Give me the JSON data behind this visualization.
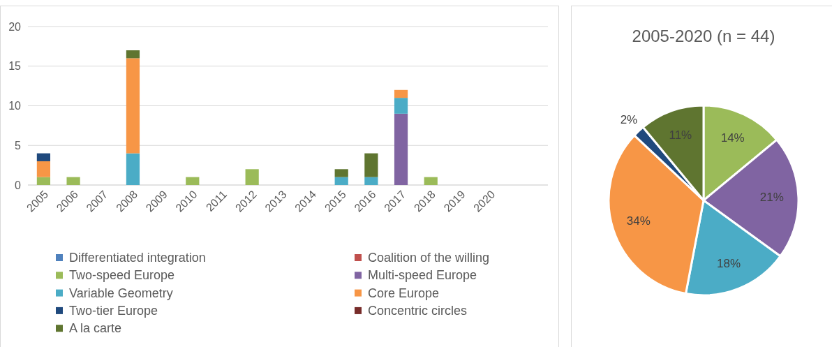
{
  "chart_data": [
    {
      "type": "bar",
      "stacked": true,
      "categories": [
        "2005",
        "2006",
        "2007",
        "2008",
        "2009",
        "2010",
        "2011",
        "2012",
        "2013",
        "2014",
        "2015",
        "2016",
        "2017",
        "2018",
        "2019",
        "2020"
      ],
      "series": [
        {
          "name": "Differentiated integration",
          "color": "#4f81bd",
          "values": [
            0,
            0,
            0,
            0,
            0,
            0,
            0,
            0,
            0,
            0,
            0,
            0,
            0,
            0,
            0,
            0
          ]
        },
        {
          "name": "Coalition of the willing",
          "color": "#c0504d",
          "values": [
            0,
            0,
            0,
            0,
            0,
            0,
            0,
            0,
            0,
            0,
            0,
            0,
            0,
            0,
            0,
            0
          ]
        },
        {
          "name": "Two-speed Europe",
          "color": "#9bbb59",
          "values": [
            1,
            1,
            0,
            0,
            0,
            1,
            0,
            2,
            0,
            0,
            0,
            0,
            0,
            1,
            0,
            0
          ]
        },
        {
          "name": "Multi-speed Europe",
          "color": "#8064a2",
          "values": [
            0,
            0,
            0,
            0,
            0,
            0,
            0,
            0,
            0,
            0,
            0,
            0,
            9,
            0,
            0,
            0
          ]
        },
        {
          "name": "Variable Geometry",
          "color": "#4bacc6",
          "values": [
            0,
            0,
            0,
            4,
            0,
            0,
            0,
            0,
            0,
            0,
            1,
            1,
            2,
            0,
            0,
            0
          ]
        },
        {
          "name": "Core Europe",
          "color": "#f79646",
          "values": [
            2,
            0,
            0,
            12,
            0,
            0,
            0,
            0,
            0,
            0,
            0,
            0,
            1,
            0,
            0,
            0
          ]
        },
        {
          "name": "Two-tier Europe",
          "color": "#1f497d",
          "values": [
            1,
            0,
            0,
            0,
            0,
            0,
            0,
            0,
            0,
            0,
            0,
            0,
            0,
            0,
            0,
            0
          ]
        },
        {
          "name": "Concentric circles",
          "color": "#772c2a",
          "values": [
            0,
            0,
            0,
            0,
            0,
            0,
            0,
            0,
            0,
            0,
            0,
            0,
            0,
            0,
            0,
            0
          ]
        },
        {
          "name": "A la carte",
          "color": "#5f7530",
          "values": [
            0,
            0,
            0,
            1,
            0,
            0,
            0,
            0,
            0,
            0,
            1,
            3,
            0,
            0,
            0,
            0
          ]
        }
      ],
      "ylim": [
        0,
        20
      ],
      "yticks": [
        0,
        5,
        10,
        15,
        20
      ],
      "grid": "y",
      "legend": "bottom"
    },
    {
      "type": "pie",
      "title": "2005-2020 (n = 44)",
      "categories": [
        null,
        null,
        null,
        null,
        null,
        null
      ],
      "values": [
        14,
        21,
        18,
        34,
        2,
        11
      ],
      "colors": [
        "#9bbb59",
        "#8064a2",
        "#4bacc6",
        "#f79646",
        "#1f497d",
        "#5f7530"
      ],
      "value_labels": [
        "14%",
        "21%",
        "18%",
        "34%",
        "2%",
        "11%"
      ]
    }
  ]
}
